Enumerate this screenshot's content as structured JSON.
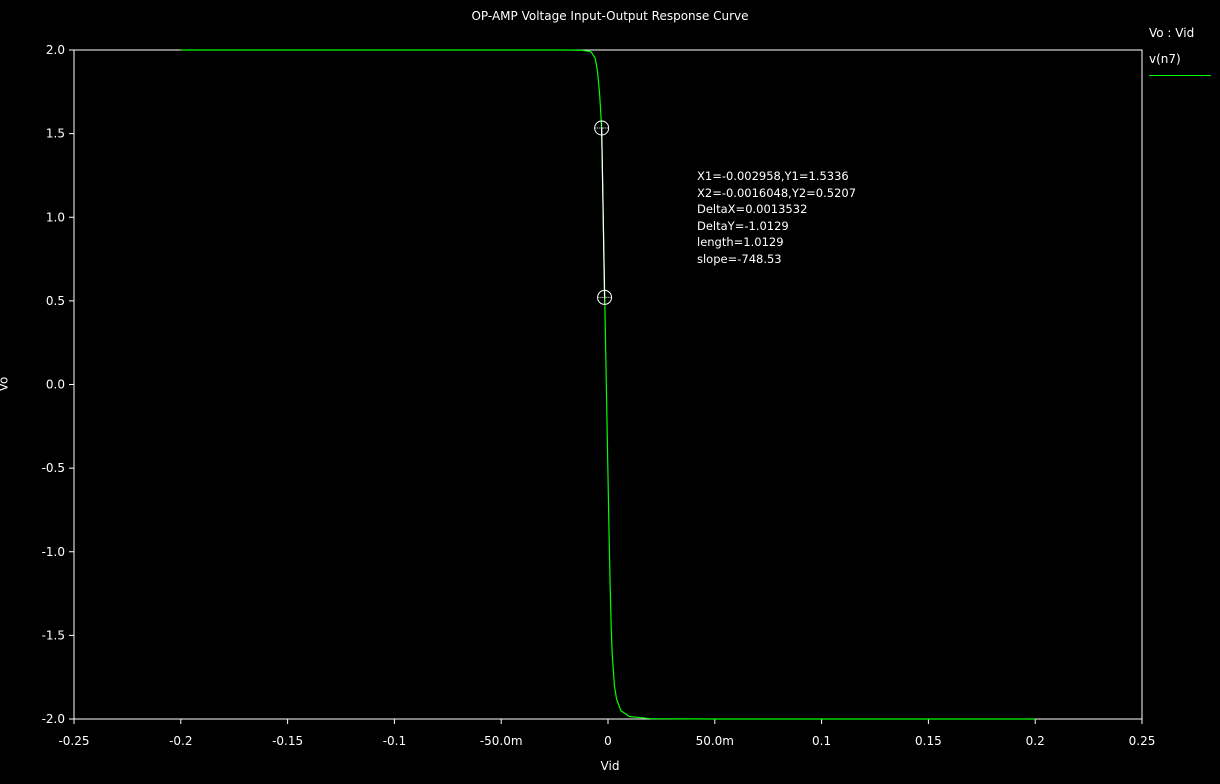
{
  "title": "OP-AMP Voltage Input-Output Response Curve",
  "legend": {
    "title": "Vo : Vid",
    "entries": [
      "v(n7)"
    ]
  },
  "cursor_info": [
    "X1=-0.002958,Y1=1.5336",
    "X2=-0.0016048,Y2=0.5207",
    "DeltaX=0.0013532",
    "DeltaY=-1.0129",
    "length=1.0129",
    "slope=-748.53"
  ],
  "colors": {
    "background": "#000000",
    "frame": "#ffffff",
    "trace": "#00ff00",
    "cursor": "#ffffff"
  },
  "chart_data": {
    "type": "line",
    "title": "OP-AMP Voltage Input-Output Response Curve",
    "xlabel": "Vid",
    "ylabel": "Vo",
    "xlim": [
      -0.25,
      0.25
    ],
    "ylim": [
      -2.0,
      2.0
    ],
    "x_ticks": [
      -0.25,
      -0.2,
      -0.15,
      -0.1,
      -0.05,
      0,
      0.05,
      0.1,
      0.15,
      0.2,
      0.25
    ],
    "x_tick_labels": [
      "-0.25",
      "-0.2",
      "-0.15",
      "-0.1",
      "-50.0m",
      "0",
      "50.0m",
      "0.1",
      "0.15",
      "0.2",
      "0.25"
    ],
    "y_ticks": [
      2.0,
      1.5,
      1.0,
      0.5,
      0.0,
      -0.5,
      -1.0,
      -1.5,
      -2.0
    ],
    "y_tick_labels": [
      "2.0",
      "1.5",
      "1.0",
      "0.5",
      "0.0",
      "-0.5",
      "-1.0",
      "-1.5",
      "-2.0"
    ],
    "grid": false,
    "legend_position": "top-right",
    "series": [
      {
        "name": "v(n7)",
        "x": [
          -0.2,
          -0.05,
          -0.02,
          -0.012,
          -0.008,
          -0.006,
          -0.005,
          -0.004,
          -0.0035,
          -0.003,
          -0.0025,
          -0.002,
          -0.0015,
          -0.001,
          -0.0005,
          0,
          0.0005,
          0.001,
          0.0015,
          0.002,
          0.003,
          0.004,
          0.006,
          0.01,
          0.02,
          0.05,
          0.2
        ],
        "y": [
          2.0,
          2.0,
          2.0,
          1.998,
          1.99,
          1.95,
          1.88,
          1.75,
          1.65,
          1.53,
          1.2,
          0.85,
          0.5,
          0.15,
          -0.2,
          -0.55,
          -0.9,
          -1.2,
          -1.45,
          -1.62,
          -1.8,
          -1.88,
          -1.95,
          -1.985,
          -1.998,
          -2.0,
          -2.0
        ]
      }
    ],
    "cursors": [
      {
        "name": "X1",
        "x": -0.002958,
        "y": 1.5336
      },
      {
        "name": "X2",
        "x": -0.0016048,
        "y": 0.5207
      }
    ]
  }
}
